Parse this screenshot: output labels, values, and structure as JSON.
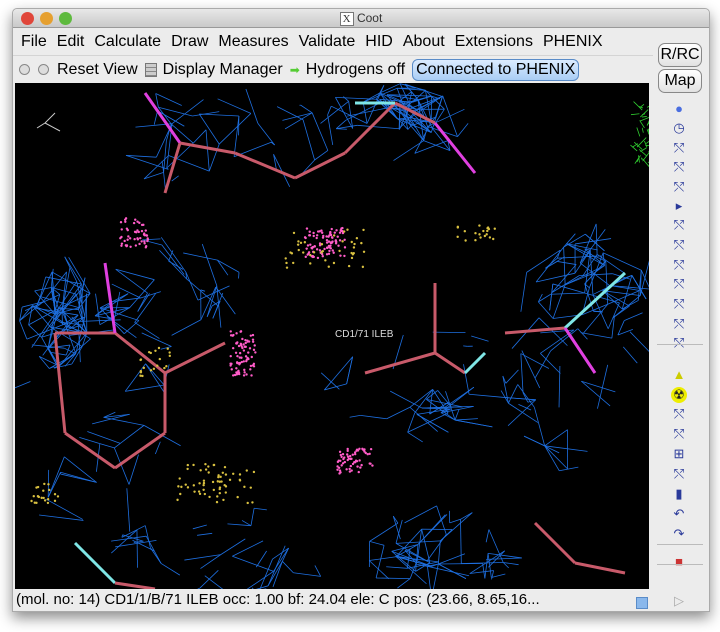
{
  "window": {
    "title": "Coot",
    "title_icon": "x11-icon"
  },
  "menu": [
    "File",
    "Edit",
    "Calculate",
    "Draw",
    "Measures",
    "Validate",
    "HID",
    "About",
    "Extensions",
    "PHENIX"
  ],
  "toolbar": {
    "reset_view": "Reset View",
    "display_manager": "Display Manager",
    "hydrogens": "Hydrogens off",
    "phenix": "Connected to PHENIX"
  },
  "side": {
    "rrc": "R/RC",
    "map": "Map",
    "icons": [
      "refine-sphere-icon",
      "refine-zone-icon",
      "regularize-icon",
      "rigid-body-fit-icon",
      "rigid-body-zone-icon",
      "more-arrow-icon",
      "auto-fit-rotamer-icon",
      "rotamer-icon",
      "edit-chi-icon",
      "torsion-general-icon",
      "flip-peptide-icon",
      "side-chain-180-icon",
      "cis-trans-icon",
      "place-atom-icon",
      "delete-icon",
      "add-terminal-residue-icon",
      "add-alt-conf-icon",
      "pointer-atom-icon",
      "mutate-icon",
      "clear-pending-icon",
      "undo-icon",
      "redo-icon",
      "flag-icon",
      "play-icon"
    ]
  },
  "canvas": {
    "atom_label": "CD1/71 ILEB",
    "colors": {
      "map": "#1e6fe0",
      "bonds": "#c85a6a",
      "cyan": "#7fe6e6",
      "magenta": "#e040e0",
      "green": "#30d030",
      "dots_pink": "#ff5cc8",
      "dots_yellow": "#d8c040"
    }
  },
  "status": "(mol. no: 14)  CD1/1/B/71 ILEB occ:  1.00 bf: 24.04 ele:  C pos: (23.66, 8.65,16..."
}
